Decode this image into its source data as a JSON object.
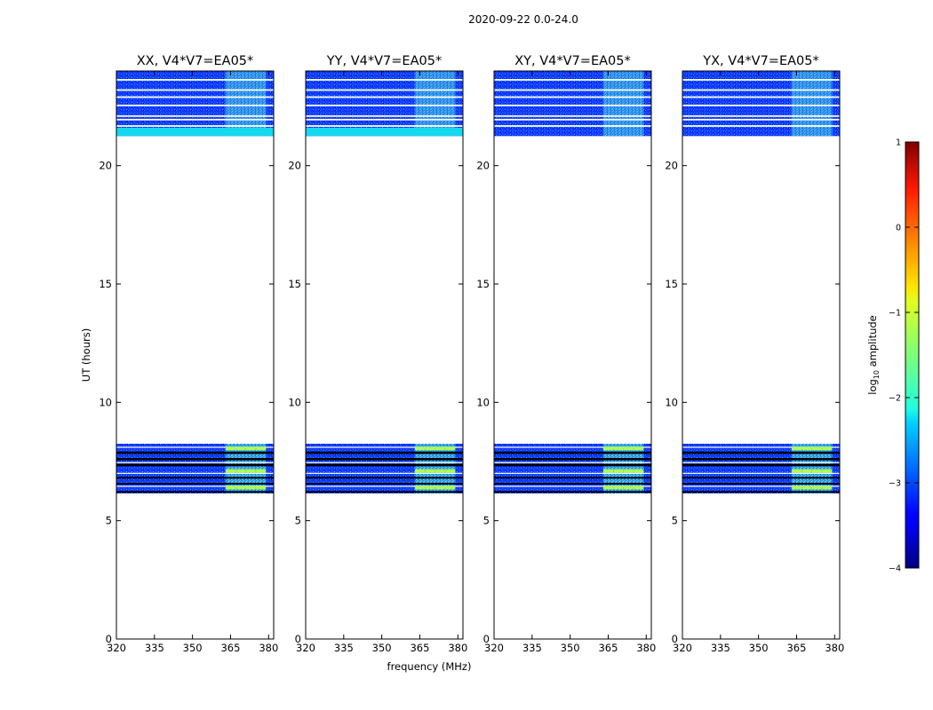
{
  "chart_data": {
    "type": "heatmap",
    "title": "2020-09-22 0.0-24.0",
    "xlabel": "frequency (MHz)",
    "ylabel": "UT (hours)",
    "xlim": [
      320,
      382
    ],
    "ylim": [
      0,
      24
    ],
    "xticks": [
      320,
      335,
      350,
      365,
      380
    ],
    "yticks": [
      0,
      5,
      10,
      15,
      20
    ],
    "colorbar": {
      "label_prefix": "log",
      "label_sub": "10",
      "label_suffix": " amplitude",
      "range": [
        -4,
        1
      ],
      "ticks": [
        1,
        0,
        -1,
        -2,
        -3,
        -4
      ],
      "colormap": "jet"
    },
    "observed_time_blocks_hours": [
      [
        6.15,
        8.25
      ],
      [
        21.25,
        24.0
      ]
    ],
    "rfi_band_mhz": [
      363,
      379
    ],
    "panels": [
      {
        "name": "XX",
        "title": "XX, V4*V7=EA05*",
        "cyan_row_hours": [
          21.25,
          21.6
        ]
      },
      {
        "name": "YY",
        "title": "YY, V4*V7=EA05*",
        "cyan_row_hours": [
          21.25,
          21.6
        ]
      },
      {
        "name": "XY",
        "title": "XY, V4*V7=EA05*",
        "cyan_row_hours": null
      },
      {
        "name": "YX",
        "title": "YX, V4*V7=EA05*",
        "cyan_row_hours": null
      }
    ]
  }
}
